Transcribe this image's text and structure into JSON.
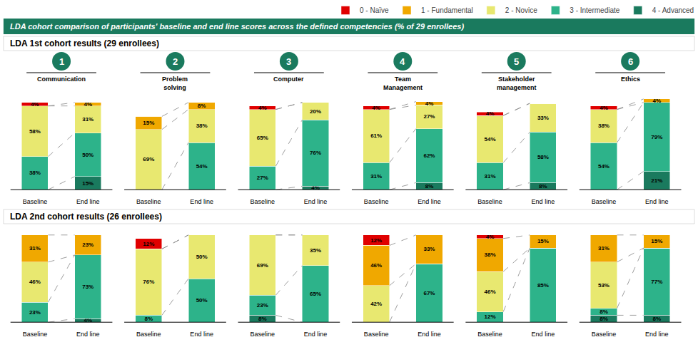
{
  "title": "LDA cohort comparison of participants' baseline and end line scores across the defined competencies (% of 29 enrollees)",
  "color": "#1a7a5e",
  "chart_data": [
    {
      "type": "bar",
      "stacked": true,
      "title": "Communication",
      "annotations": [
        "1"
      ],
      "subtitle": "LDA 1st cohort results (29 enrollees)",
      "legend": "top right",
      "categories": [
        "Baseline",
        "End line"
      ],
      "ylim": [
        -8,
        108
      ],
      "tick_labels": "x",
      "grid": false,
      "data_labels": true,
      "series": [
        {
          "name": "0 - Naïve",
          "color": "#e00000",
          "values": [
            4,
            0
          ],
          "value_labels": [
            "4%",
            null
          ]
        },
        {
          "name": "1 - Fundamental",
          "color": "#f0a800",
          "values": [
            0,
            4
          ],
          "value_labels": [
            null,
            "4%"
          ]
        },
        {
          "name": "2 - Novice",
          "color": "#e8e870",
          "values": [
            58,
            31
          ],
          "value_labels": [
            "58%",
            "31%"
          ]
        },
        {
          "name": "3 - Intermediate",
          "color": "#2db38a",
          "values": [
            38,
            50
          ],
          "value_labels": [
            "38%",
            "50%"
          ]
        },
        {
          "name": "4 - Advanced",
          "color": "#1a7a5e",
          "values": [
            0,
            15
          ],
          "value_labels": [
            null,
            "15%"
          ]
        }
      ]
    },
    {
      "type": "bar",
      "stacked": true,
      "title": "Problem\nsolving",
      "annotations": [
        "2"
      ],
      "categories": [
        "Baseline",
        "End line"
      ],
      "ylim": [
        -8,
        108
      ],
      "tick_labels": "x",
      "grid": false,
      "data_labels": true,
      "series": [
        {
          "name": "0 - Naïve",
          "color": "#e00000",
          "values": [
            0,
            0
          ],
          "value_labels": [
            null,
            null
          ]
        },
        {
          "name": "1 - Fundamental",
          "color": "#f0a800",
          "values": [
            15,
            8
          ],
          "value_labels": [
            "15%",
            "8%"
          ]
        },
        {
          "name": "2 - Novice",
          "color": "#e8e870",
          "values": [
            69,
            38
          ],
          "value_labels": [
            "69%",
            "38%"
          ]
        },
        {
          "name": "3 - Intermediate",
          "color": "#2db38a",
          "values": [
            0,
            54
          ],
          "value_labels": [
            null,
            "54%"
          ]
        },
        {
          "name": "4 - Advanced",
          "color": "#1a7a5e",
          "values": [
            0,
            0
          ],
          "value_labels": [
            null,
            null
          ]
        }
      ]
    },
    {
      "type": "bar",
      "stacked": true,
      "title": "Computer",
      "annotations": [
        "3"
      ],
      "categories": [
        "Baseline",
        "End line"
      ],
      "ylim": [
        -8,
        108
      ],
      "tick_labels": "x",
      "grid": false,
      "data_labels": true,
      "series": [
        {
          "name": "0 - Naïve",
          "color": "#e00000",
          "values": [
            4,
            0
          ],
          "value_labels": [
            "4%",
            null
          ]
        },
        {
          "name": "1 - Fundamental",
          "color": "#f0a800",
          "values": [
            0,
            0
          ],
          "value_labels": [
            null,
            null
          ]
        },
        {
          "name": "2 - Novice",
          "color": "#e8e870",
          "values": [
            65,
            20
          ],
          "value_labels": [
            "65%",
            "20%"
          ]
        },
        {
          "name": "3 - Intermediate",
          "color": "#2db38a",
          "values": [
            27,
            76
          ],
          "value_labels": [
            "27%",
            "76%"
          ]
        },
        {
          "name": "4 - Advanced",
          "color": "#1a7a5e",
          "values": [
            0,
            4
          ],
          "value_labels": [
            null,
            "4%"
          ]
        }
      ]
    },
    {
      "type": "bar",
      "stacked": true,
      "title": "Team\nManagement",
      "annotations": [
        "4"
      ],
      "categories": [
        "Baseline",
        "End line"
      ],
      "ylim": [
        -8,
        108
      ],
      "tick_labels": "x",
      "grid": false,
      "data_labels": true,
      "series": [
        {
          "name": "0 - Naïve",
          "color": "#e00000",
          "values": [
            4,
            0
          ],
          "value_labels": [
            "4%",
            null
          ]
        },
        {
          "name": "1 - Fundamental",
          "color": "#f0a800",
          "values": [
            0,
            4
          ],
          "value_labels": [
            null,
            "4%"
          ]
        },
        {
          "name": "2 - Novice",
          "color": "#e8e870",
          "values": [
            61,
            27
          ],
          "value_labels": [
            "61%",
            "27%"
          ]
        },
        {
          "name": "3 - Intermediate",
          "color": "#2db38a",
          "values": [
            31,
            62
          ],
          "value_labels": [
            "31%",
            "62%"
          ]
        },
        {
          "name": "4 - Advanced",
          "color": "#1a7a5e",
          "values": [
            0,
            8
          ],
          "value_labels": [
            null,
            "8%"
          ]
        }
      ]
    },
    {
      "type": "bar",
      "stacked": true,
      "title": "Stakeholder\nmanagement",
      "annotations": [
        "5"
      ],
      "categories": [
        "Baseline",
        "End line"
      ],
      "ylim": [
        -8,
        108
      ],
      "tick_labels": "x",
      "grid": false,
      "data_labels": true,
      "series": [
        {
          "name": "0 - Naïve",
          "color": "#e00000",
          "values": [
            4,
            0
          ],
          "value_labels": [
            "4%",
            null
          ]
        },
        {
          "name": "1 - Fundamental",
          "color": "#f0a800",
          "values": [
            0,
            0
          ],
          "value_labels": [
            null,
            null
          ]
        },
        {
          "name": "2 - Novice",
          "color": "#e8e870",
          "values": [
            54,
            33
          ],
          "value_labels": [
            "54%",
            "33%"
          ]
        },
        {
          "name": "3 - Intermediate",
          "color": "#2db38a",
          "values": [
            31,
            58
          ],
          "value_labels": [
            "31%",
            "58%"
          ]
        },
        {
          "name": "4 - Advanced",
          "color": "#1a7a5e",
          "values": [
            0,
            8
          ],
          "value_labels": [
            null,
            "8%"
          ]
        }
      ]
    },
    {
      "type": "bar",
      "stacked": true,
      "title": "Ethics",
      "annotations": [
        "6"
      ],
      "categories": [
        "Baseline",
        "End line"
      ],
      "ylim": [
        -8,
        108
      ],
      "tick_labels": "x",
      "grid": false,
      "data_labels": true,
      "series": [
        {
          "name": "0 - Naïve",
          "color": "#e00000",
          "values": [
            4,
            0
          ],
          "value_labels": [
            "4%",
            null
          ]
        },
        {
          "name": "1 - Fundamental",
          "color": "#f0a800",
          "values": [
            0,
            4
          ],
          "value_labels": [
            null,
            "4%"
          ]
        },
        {
          "name": "2 - Novice",
          "color": "#e8e870",
          "values": [
            38,
            0
          ],
          "value_labels": [
            "38%",
            null
          ]
        },
        {
          "name": "3 - Intermediate",
          "color": "#2db38a",
          "values": [
            54,
            79
          ],
          "value_labels": [
            "54%",
            "79%"
          ]
        },
        {
          "name": "4 - Advanced",
          "color": "#1a7a5e",
          "values": [
            0,
            21
          ],
          "value_labels": [
            null,
            "21%"
          ]
        }
      ]
    },
    {
      "type": "bar",
      "stacked": true,
      "subtitle": "LDA 2nd cohort results (26 enrollees)",
      "categories": [
        "Baseline",
        "End line"
      ],
      "ylim": [
        -8,
        108
      ],
      "tick_labels": "x",
      "grid": false,
      "data_labels": true,
      "series": [
        {
          "name": "0 - Naïve",
          "color": "#e00000",
          "values": [
            0,
            0
          ],
          "value_labels": [
            null,
            null
          ]
        },
        {
          "name": "1 - Fundamental",
          "color": "#f0a800",
          "values": [
            31,
            23
          ],
          "value_labels": [
            "31%",
            "23%"
          ]
        },
        {
          "name": "2 - Novice",
          "color": "#e8e870",
          "values": [
            46,
            0
          ],
          "value_labels": [
            "46%",
            null
          ]
        },
        {
          "name": "3 - Intermediate",
          "color": "#2db38a",
          "values": [
            23,
            73
          ],
          "value_labels": [
            "23%",
            "73%"
          ]
        },
        {
          "name": "4 - Advanced",
          "color": "#1a7a5e",
          "values": [
            0,
            4
          ],
          "value_labels": [
            null,
            "4%"
          ]
        }
      ]
    },
    {
      "type": "bar",
      "stacked": true,
      "categories": [
        "Baseline",
        "End line"
      ],
      "ylim": [
        -8,
        108
      ],
      "tick_labels": "x",
      "grid": false,
      "data_labels": true,
      "series": [
        {
          "name": "0 - Naïve",
          "color": "#e00000",
          "values": [
            12,
            0
          ],
          "value_labels": [
            "12%",
            null
          ]
        },
        {
          "name": "1 - Fundamental",
          "color": "#f0a800",
          "values": [
            0,
            0
          ],
          "value_labels": [
            null,
            null
          ]
        },
        {
          "name": "2 - Novice",
          "color": "#e8e870",
          "values": [
            76,
            50
          ],
          "value_labels": [
            "76%",
            "50%"
          ]
        },
        {
          "name": "3 - Intermediate",
          "color": "#2db38a",
          "values": [
            8,
            50
          ],
          "value_labels": [
            "8%",
            "50%"
          ]
        },
        {
          "name": "4 - Advanced",
          "color": "#1a7a5e",
          "values": [
            0,
            0
          ],
          "value_labels": [
            null,
            null
          ]
        }
      ]
    },
    {
      "type": "bar",
      "stacked": true,
      "categories": [
        "Baseline",
        "End line"
      ],
      "ylim": [
        -8,
        108
      ],
      "tick_labels": "x",
      "grid": false,
      "data_labels": true,
      "series": [
        {
          "name": "0 - Naïve",
          "color": "#e00000",
          "values": [
            0,
            0
          ],
          "value_labels": [
            null,
            null
          ]
        },
        {
          "name": "1 - Fundamental",
          "color": "#f0a800",
          "values": [
            0,
            0
          ],
          "value_labels": [
            null,
            null
          ]
        },
        {
          "name": "2 - Novice",
          "color": "#e8e870",
          "values": [
            69,
            35
          ],
          "value_labels": [
            "69%",
            "35%"
          ]
        },
        {
          "name": "3 - Intermediate",
          "color": "#2db38a",
          "values": [
            23,
            65
          ],
          "value_labels": [
            "23%",
            "65%"
          ]
        },
        {
          "name": "4 - Advanced",
          "color": "#1a7a5e",
          "values": [
            8,
            0
          ],
          "value_labels": [
            "8%",
            null
          ]
        }
      ]
    },
    {
      "type": "bar",
      "stacked": true,
      "categories": [
        "Baseline",
        "End line"
      ],
      "ylim": [
        -8,
        108
      ],
      "tick_labels": "x",
      "grid": false,
      "data_labels": true,
      "series": [
        {
          "name": "0 - Naïve",
          "color": "#e00000",
          "values": [
            12,
            0
          ],
          "value_labels": [
            "12%",
            null
          ]
        },
        {
          "name": "1 - Fundamental",
          "color": "#f0a800",
          "values": [
            46,
            33
          ],
          "value_labels": [
            "46%",
            "33%"
          ]
        },
        {
          "name": "2 - Novice",
          "color": "#e8e870",
          "values": [
            42,
            0
          ],
          "value_labels": [
            "42%",
            null
          ]
        },
        {
          "name": "3 - Intermediate",
          "color": "#2db38a",
          "values": [
            0,
            67
          ],
          "value_labels": [
            null,
            "67%"
          ]
        },
        {
          "name": "4 - Advanced",
          "color": "#1a7a5e",
          "values": [
            0,
            0
          ],
          "value_labels": [
            null,
            null
          ]
        }
      ]
    },
    {
      "type": "bar",
      "stacked": true,
      "categories": [
        "Baseline",
        "End line"
      ],
      "ylim": [
        -8,
        108
      ],
      "tick_labels": "x",
      "grid": false,
      "data_labels": true,
      "series": [
        {
          "name": "0 - Naïve",
          "color": "#e00000",
          "values": [
            4,
            0
          ],
          "value_labels": [
            "4%",
            null
          ]
        },
        {
          "name": "1 - Fundamental",
          "color": "#f0a800",
          "values": [
            38,
            15
          ],
          "value_labels": [
            "38%",
            "15%"
          ]
        },
        {
          "name": "2 - Novice",
          "color": "#e8e870",
          "values": [
            46,
            0
          ],
          "value_labels": [
            "46%",
            null
          ]
        },
        {
          "name": "3 - Intermediate",
          "color": "#2db38a",
          "values": [
            12,
            85
          ],
          "value_labels": [
            "12%",
            "85%"
          ]
        },
        {
          "name": "4 - Advanced",
          "color": "#1a7a5e",
          "values": [
            0,
            0
          ],
          "value_labels": [
            null,
            null
          ]
        }
      ]
    },
    {
      "type": "bar",
      "stacked": true,
      "categories": [
        "Baseline",
        "End line"
      ],
      "ylim": [
        -8,
        108
      ],
      "tick_labels": "x",
      "grid": false,
      "data_labels": true,
      "series": [
        {
          "name": "0 - Naïve",
          "color": "#e00000",
          "values": [
            0,
            0
          ],
          "value_labels": [
            null,
            null
          ]
        },
        {
          "name": "1 - Fundamental",
          "color": "#f0a800",
          "values": [
            31,
            15
          ],
          "value_labels": [
            "31%",
            "15%"
          ]
        },
        {
          "name": "2 - Novice",
          "color": "#e8e870",
          "values": [
            53,
            0
          ],
          "value_labels": [
            "53%",
            null
          ]
        },
        {
          "name": "3 - Intermediate",
          "color": "#2db38a",
          "values": [
            8,
            77
          ],
          "value_labels": [
            "8%",
            "77%"
          ]
        },
        {
          "name": "4 - Advanced",
          "color": "#1a7a5e",
          "values": [
            8,
            8
          ],
          "value_labels": [
            "8%",
            "8%"
          ]
        }
      ]
    }
  ]
}
